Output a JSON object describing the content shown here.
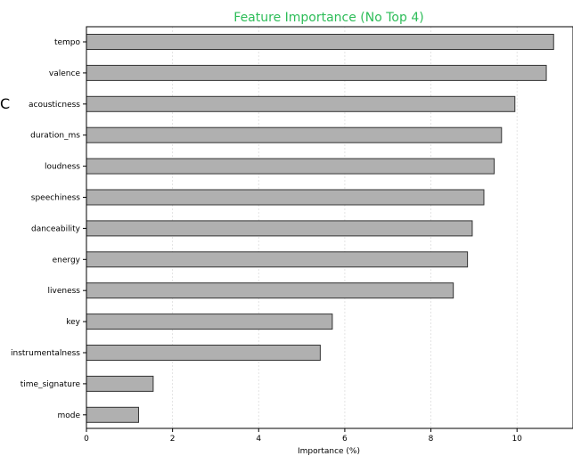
{
  "chart_data": {
    "type": "bar",
    "orientation": "horizontal",
    "title": "Feature Importance (No Top 4)",
    "xlabel": "Importance (%)",
    "ylabel": "",
    "categories": [
      "tempo",
      "valence",
      "acousticness",
      "duration_ms",
      "loudness",
      "speechiness",
      "danceability",
      "energy",
      "liveness",
      "key",
      "instrumentalness",
      "time_signature",
      "mode"
    ],
    "values": [
      10.85,
      10.68,
      9.95,
      9.64,
      9.47,
      9.23,
      8.96,
      8.85,
      8.52,
      5.71,
      5.43,
      1.55,
      1.21
    ],
    "xlim": [
      0,
      11.3
    ],
    "xticks": [
      "0",
      "2",
      "4",
      "6",
      "8",
      "10"
    ],
    "grid": "vertical dashed",
    "colors": {
      "title": "#2ebd59",
      "bar_fill": "#b0b0b0",
      "bar_edge": "#333333",
      "grid": "#dddddd"
    }
  },
  "stray_text": "C"
}
